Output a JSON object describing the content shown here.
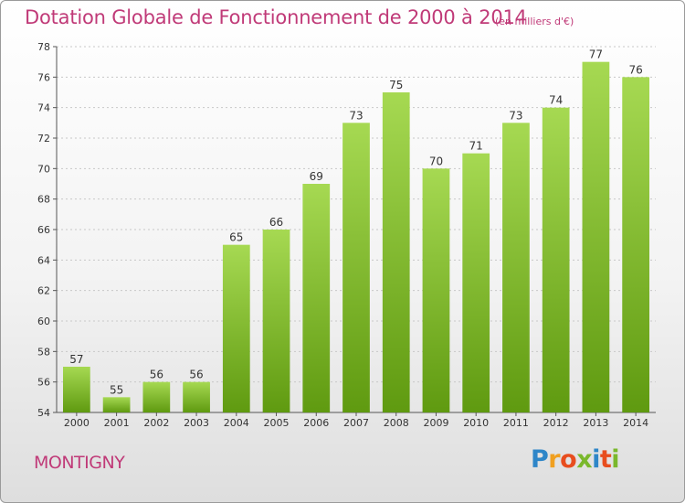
{
  "title": "Dotation Globale de Fonctionnement de 2000 à 2014",
  "unit_note": "(en milliers d'€)",
  "town": "MONTIGNY",
  "logo_text": "Proxiti",
  "colors": {
    "title": "#c03a78",
    "bar_top": "#a6d952",
    "bar_bottom": "#5f9a10",
    "axis": "#555555",
    "grid": "#c8c8c8"
  },
  "chart_data": {
    "type": "bar",
    "categories": [
      "2000",
      "2001",
      "2002",
      "2003",
      "2004",
      "2005",
      "2006",
      "2007",
      "2008",
      "2009",
      "2010",
      "2011",
      "2012",
      "2013",
      "2014"
    ],
    "values": [
      57,
      55,
      56,
      56,
      65,
      66,
      69,
      73,
      75,
      70,
      71,
      73,
      74,
      77,
      76
    ],
    "ylim": [
      54,
      78
    ],
    "yticks": [
      54,
      56,
      58,
      60,
      62,
      64,
      66,
      68,
      70,
      72,
      74,
      76,
      78
    ],
    "title": "Dotation Globale de Fonctionnement de 2000 à 2014",
    "xlabel": "",
    "ylabel": "",
    "grid": true,
    "data_labels": true
  }
}
